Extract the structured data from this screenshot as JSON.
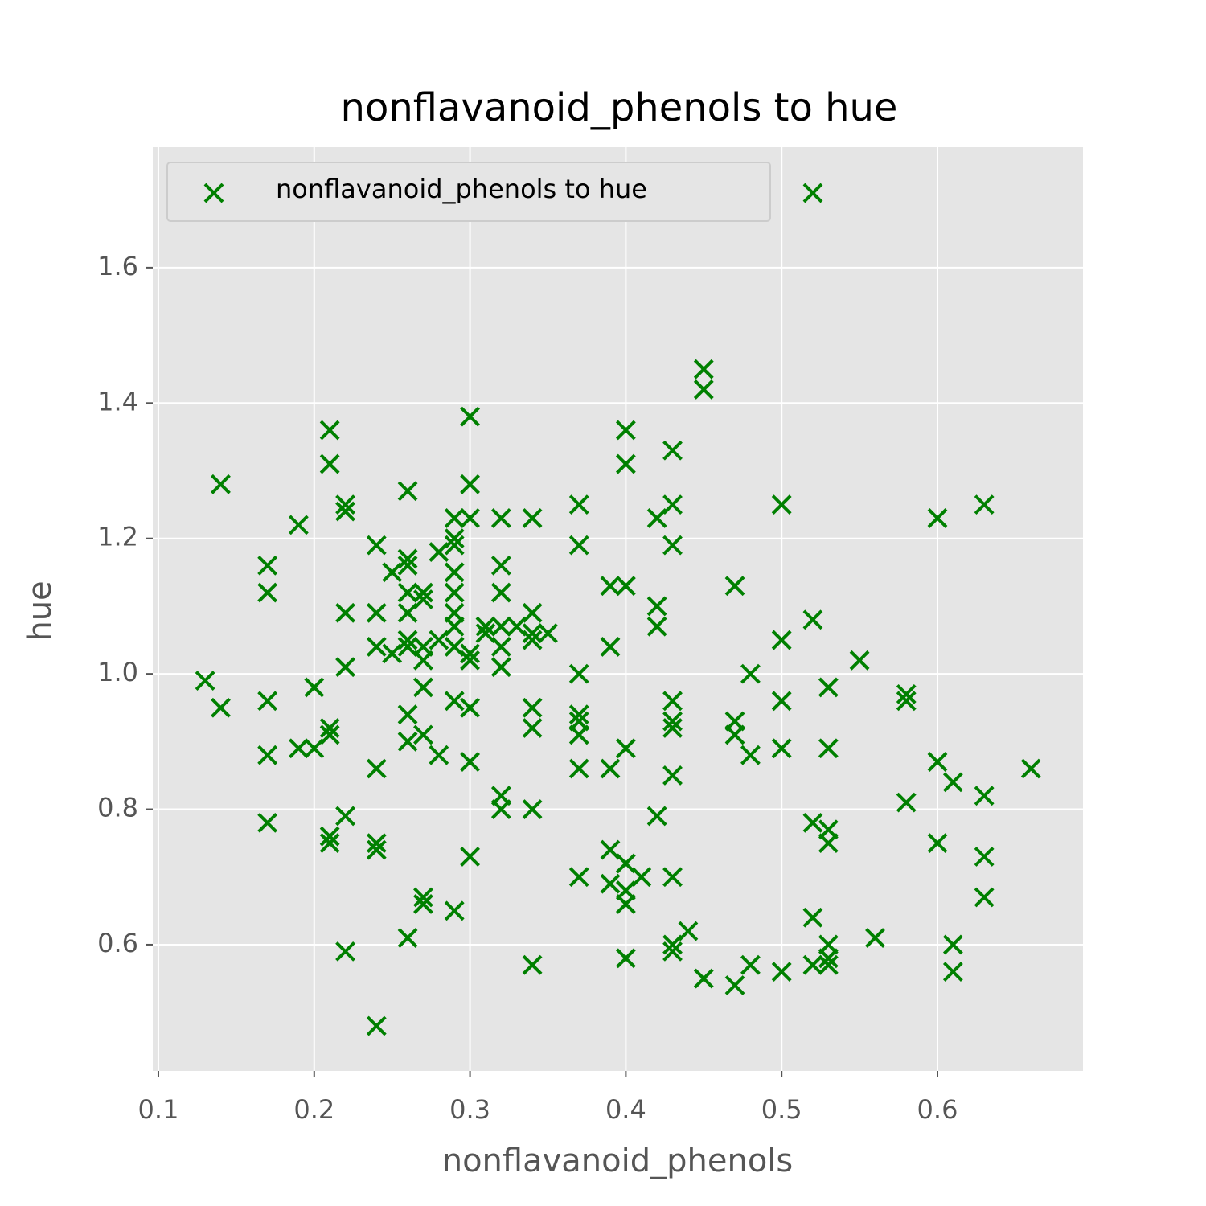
{
  "chart_data": {
    "type": "scatter",
    "title": "nonflavanoid_phenols to hue",
    "x_label": "nonflavanoid_phenols",
    "y_label": "hue",
    "x": [
      0.13,
      0.14,
      0.14,
      0.17,
      0.17,
      0.17,
      0.17,
      0.17,
      0.19,
      0.19,
      0.2,
      0.2,
      0.21,
      0.21,
      0.21,
      0.21,
      0.21,
      0.21,
      0.22,
      0.22,
      0.22,
      0.22,
      0.22,
      0.22,
      0.24,
      0.24,
      0.24,
      0.24,
      0.24,
      0.24,
      0.24,
      0.25,
      0.25,
      0.26,
      0.26,
      0.26,
      0.26,
      0.26,
      0.26,
      0.26,
      0.26,
      0.26,
      0.26,
      0.27,
      0.27,
      0.27,
      0.27,
      0.27,
      0.27,
      0.27,
      0.27,
      0.28,
      0.28,
      0.28,
      0.29,
      0.29,
      0.29,
      0.29,
      0.29,
      0.29,
      0.29,
      0.29,
      0.29,
      0.29,
      0.3,
      0.3,
      0.3,
      0.3,
      0.3,
      0.3,
      0.3,
      0.3,
      0.31,
      0.31,
      0.32,
      0.32,
      0.32,
      0.32,
      0.32,
      0.32,
      0.32,
      0.32,
      0.33,
      0.34,
      0.34,
      0.34,
      0.34,
      0.34,
      0.34,
      0.34,
      0.34,
      0.35,
      0.37,
      0.37,
      0.37,
      0.37,
      0.37,
      0.37,
      0.37,
      0.37,
      0.39,
      0.39,
      0.39,
      0.39,
      0.39,
      0.4,
      0.4,
      0.4,
      0.4,
      0.4,
      0.4,
      0.4,
      0.4,
      0.41,
      0.42,
      0.42,
      0.42,
      0.42,
      0.43,
      0.43,
      0.43,
      0.43,
      0.43,
      0.43,
      0.43,
      0.43,
      0.43,
      0.43,
      0.44,
      0.45,
      0.45,
      0.45,
      0.47,
      0.47,
      0.47,
      0.47,
      0.48,
      0.48,
      0.48,
      0.5,
      0.5,
      0.5,
      0.5,
      0.5,
      0.52,
      0.52,
      0.52,
      0.52,
      0.53,
      0.53,
      0.53,
      0.53,
      0.53,
      0.53,
      0.53,
      0.55,
      0.56,
      0.58,
      0.58,
      0.58,
      0.6,
      0.6,
      0.6,
      0.61,
      0.61,
      0.61,
      0.63,
      0.63,
      0.63,
      0.63,
      0.66
    ],
    "series": [
      {
        "name": "nonflavanoid_phenols to hue",
        "color": "#008000",
        "values": [
          0.99,
          1.28,
          0.95,
          1.16,
          1.12,
          0.96,
          0.88,
          0.78,
          1.22,
          0.89,
          0.98,
          0.89,
          1.36,
          1.31,
          0.92,
          0.91,
          0.76,
          0.75,
          1.25,
          1.24,
          1.09,
          1.01,
          0.79,
          0.59,
          1.19,
          1.09,
          1.04,
          0.86,
          0.75,
          0.74,
          0.48,
          1.15,
          1.03,
          1.27,
          1.17,
          1.16,
          1.12,
          1.09,
          1.05,
          1.04,
          0.94,
          0.9,
          0.61,
          1.12,
          1.11,
          1.04,
          1.02,
          0.98,
          0.91,
          0.67,
          0.66,
          1.18,
          1.05,
          0.88,
          1.23,
          1.2,
          1.19,
          1.15,
          1.12,
          1.09,
          1.07,
          1.04,
          0.96,
          0.65,
          1.38,
          1.28,
          1.23,
          1.03,
          1.02,
          0.95,
          0.87,
          0.73,
          1.07,
          1.06,
          1.23,
          1.16,
          1.12,
          1.07,
          1.04,
          1.01,
          0.82,
          0.8,
          1.07,
          1.23,
          1.09,
          1.06,
          1.05,
          0.95,
          0.92,
          0.8,
          0.57,
          1.06,
          1.25,
          1.19,
          1.0,
          0.94,
          0.93,
          0.91,
          0.86,
          0.7,
          1.13,
          1.04,
          0.86,
          0.74,
          0.69,
          1.36,
          1.31,
          1.13,
          0.89,
          0.72,
          0.68,
          0.66,
          0.58,
          0.7,
          1.23,
          1.1,
          1.07,
          0.79,
          1.33,
          1.25,
          1.19,
          0.96,
          0.93,
          0.92,
          0.85,
          0.7,
          0.6,
          0.59,
          0.62,
          1.45,
          1.42,
          0.55,
          1.13,
          0.93,
          0.91,
          0.54,
          1.0,
          0.88,
          0.57,
          1.25,
          1.05,
          0.96,
          0.89,
          0.56,
          1.08,
          0.78,
          0.64,
          0.57,
          0.98,
          0.89,
          0.77,
          0.75,
          0.6,
          0.58,
          0.57,
          1.02,
          0.61,
          0.97,
          0.96,
          0.81,
          1.23,
          0.87,
          0.75,
          0.84,
          0.6,
          0.56,
          1.25,
          0.82,
          0.73,
          0.67,
          0.86
        ]
      }
    ],
    "xlim": [
      0.0964,
      0.6934
    ],
    "ylim": [
      0.4135,
      1.778
    ],
    "xticks": [
      0.1,
      0.2,
      0.3,
      0.4,
      0.5,
      0.6
    ],
    "yticks": [
      0.6,
      0.8,
      {
        "value": 1,
        "label": "1.0"
      },
      1.2,
      1.4,
      1.6
    ],
    "grid": true,
    "legend": "upper left"
  }
}
